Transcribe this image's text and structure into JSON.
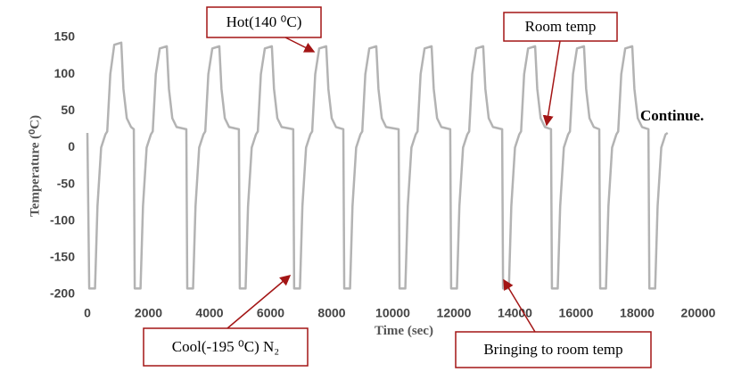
{
  "chart_data": {
    "type": "line",
    "x_label": "Time (sec)",
    "y_label": "Temperature (⁰C)",
    "color": "#b3b3b3",
    "x": [
      0,
      60,
      250,
      330,
      450,
      590,
      650,
      750,
      880,
      1110,
      1180,
      1290,
      1430,
      1520,
      1550,
      1740,
      1820,
      1940,
      2080,
      2140,
      2240,
      2370,
      2600,
      2670,
      2780,
      2920,
      3240,
      3270,
      3460,
      3540,
      3660,
      3800,
      3860,
      3960,
      4090,
      4320,
      4390,
      4500,
      4640,
      4960,
      4990,
      5180,
      5260,
      5380,
      5520,
      5580,
      5680,
      5810,
      6040,
      6110,
      6220,
      6360,
      6740,
      6770,
      6960,
      7040,
      7160,
      7300,
      7360,
      7460,
      7590,
      7820,
      7890,
      8000,
      8140,
      8380,
      8410,
      8600,
      8680,
      8800,
      8940,
      9000,
      9100,
      9230,
      9460,
      9530,
      9640,
      9780,
      10190,
      10220,
      10410,
      10490,
      10610,
      10750,
      10810,
      10910,
      11040,
      11270,
      11340,
      11450,
      11590,
      11880,
      11910,
      12100,
      12180,
      12300,
      12440,
      12500,
      12600,
      12730,
      12960,
      13030,
      13140,
      13280,
      13580,
      13610,
      13800,
      13880,
      14000,
      14140,
      14200,
      14300,
      14430,
      14660,
      14730,
      14840,
      14980,
      15180,
      15210,
      15400,
      15480,
      15600,
      15740,
      15800,
      15900,
      16030,
      16260,
      16330,
      16440,
      16580,
      16760,
      16790,
      16980,
      17060,
      17180,
      17320,
      17380,
      17480,
      17610,
      17840,
      17910,
      18020,
      18160,
      18370,
      18400,
      18590,
      18670,
      18790,
      18930,
      19000
    ],
    "values": [
      20,
      -192,
      -192,
      -80,
      0,
      18,
      22,
      100,
      140,
      143,
      80,
      40,
      28,
      25,
      -192,
      -192,
      -80,
      0,
      18,
      22,
      100,
      135,
      138,
      80,
      40,
      28,
      25,
      -192,
      -192,
      -80,
      0,
      18,
      22,
      100,
      135,
      138,
      80,
      40,
      28,
      25,
      -192,
      -192,
      -80,
      0,
      18,
      22,
      100,
      135,
      138,
      80,
      40,
      28,
      25,
      -192,
      -192,
      -80,
      0,
      18,
      22,
      100,
      135,
      138,
      80,
      40,
      28,
      25,
      -192,
      -192,
      -80,
      0,
      18,
      22,
      100,
      135,
      138,
      80,
      40,
      28,
      25,
      -192,
      -192,
      -80,
      0,
      18,
      22,
      100,
      135,
      138,
      80,
      40,
      28,
      25,
      -192,
      -192,
      -80,
      0,
      18,
      22,
      100,
      135,
      138,
      80,
      40,
      28,
      25,
      -192,
      -192,
      -80,
      0,
      18,
      22,
      100,
      135,
      138,
      80,
      40,
      28,
      25,
      -192,
      -192,
      -80,
      0,
      18,
      22,
      100,
      135,
      138,
      80,
      40,
      28,
      25,
      -192,
      -192,
      -80,
      0,
      18,
      22,
      100,
      135,
      138,
      80,
      40,
      28,
      25,
      -192,
      -192,
      -80,
      0,
      18,
      20
    ],
    "xlim": [
      0,
      20000
    ],
    "xticks": [
      0,
      2000,
      4000,
      6000,
      8000,
      10000,
      12000,
      14000,
      16000,
      18000,
      20000
    ],
    "ylim": [
      -200,
      150
    ],
    "yticks": [
      -200,
      -150,
      -100,
      -50,
      0,
      50,
      100,
      150
    ],
    "annotations": [
      {
        "text": "Hot(140 ⁰C)"
      },
      {
        "text": "Room temp"
      },
      {
        "text": "Continue."
      },
      {
        "text": "Cool(-195 ⁰C) N₂"
      },
      {
        "text": "Bringing to room temp"
      }
    ]
  }
}
